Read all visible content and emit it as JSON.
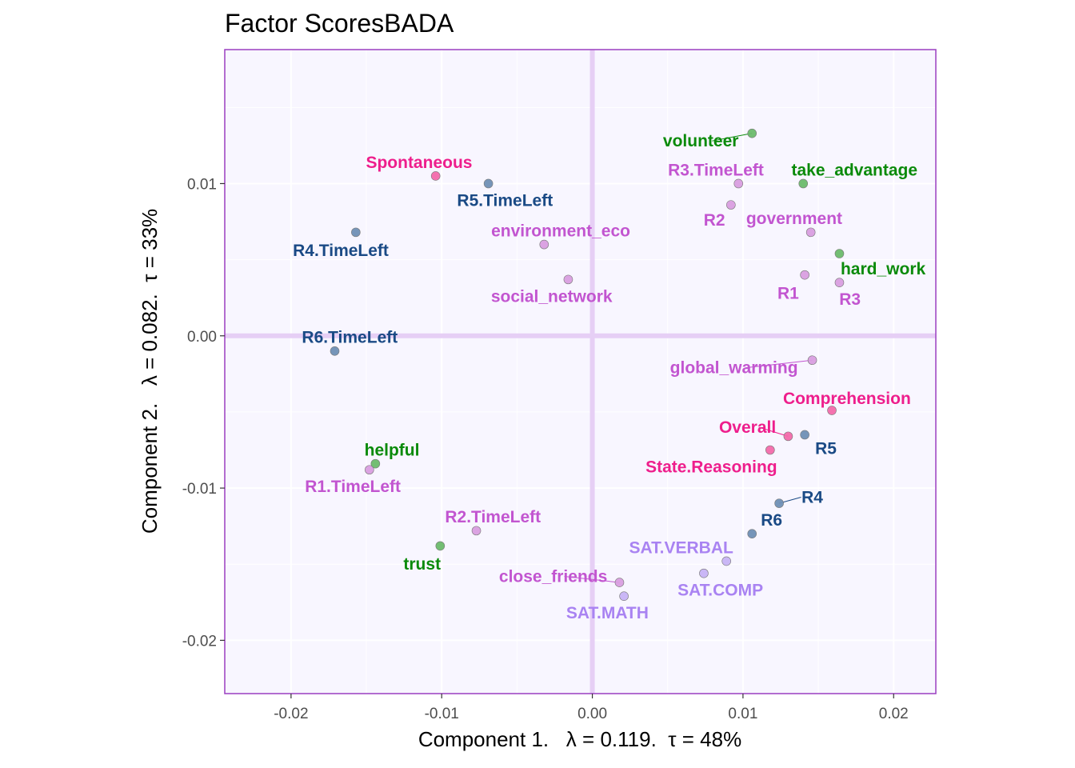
{
  "chart_data": {
    "type": "scatter",
    "title": "Factor ScoresBADA",
    "xlabel": "Component 1.   λ = 0.119.  τ = 48%",
    "ylabel": "Component 2.   λ = 0.082.  τ = 33%",
    "xlim": [
      -0.0244,
      0.0228
    ],
    "ylim": [
      -0.0235,
      0.0188
    ],
    "x_ticks": [
      -0.02,
      -0.01,
      0.0,
      0.01,
      0.02
    ],
    "x_tick_labels": [
      "-0.02",
      "-0.01",
      "0.00",
      "0.01",
      "0.02"
    ],
    "y_ticks": [
      -0.02,
      -0.01,
      0.0,
      0.01
    ],
    "y_tick_labels": [
      "-0.02",
      "-0.01",
      "0.00",
      "0.01"
    ],
    "grid": true,
    "colors": {
      "panel_background": "#f8f6ff",
      "panel_border": "#9a3fc0",
      "origin_lines": "#e6cff5",
      "green": "#0a8a0a",
      "pink": "#ee1e8c",
      "blue": "#1a4a85",
      "orchid": "#c255d0",
      "lavender": "#a983f2"
    },
    "points": [
      {
        "label": "volunteer",
        "x": 0.0106,
        "y": 0.0133,
        "point_color": "#6cba6c",
        "label_color": "#0a8a0a",
        "label_dx": -0.0034,
        "label_dy": -0.0005
      },
      {
        "label": "take_advantage",
        "x": 0.014,
        "y": 0.01,
        "point_color": "#6cba6c",
        "label_color": "#0a8a0a",
        "label_dx": 0.0034,
        "label_dy": 0.0009
      },
      {
        "label": "hard_work",
        "x": 0.0164,
        "y": 0.0054,
        "point_color": "#6cba6c",
        "label_color": "#0a8a0a",
        "label_dx": 0.0029,
        "label_dy": -0.001
      },
      {
        "label": "helpful",
        "x": -0.0144,
        "y": -0.0084,
        "point_color": "#6cba6c",
        "label_color": "#0a8a0a",
        "label_dx": 0.0011,
        "label_dy": 0.0009
      },
      {
        "label": "trust",
        "x": -0.0101,
        "y": -0.0138,
        "point_color": "#6cba6c",
        "label_color": "#0a8a0a",
        "label_dx": -0.0012,
        "label_dy": -0.0012
      },
      {
        "label": "Spontaneous",
        "x": -0.0104,
        "y": 0.0105,
        "point_color": "#f36aab",
        "label_color": "#ee1e8c",
        "label_dx": -0.0011,
        "label_dy": 0.0009
      },
      {
        "label": "Comprehension",
        "x": 0.0159,
        "y": -0.0049,
        "point_color": "#f36aab",
        "label_color": "#ee1e8c",
        "label_dx": 0.001,
        "label_dy": 0.0008
      },
      {
        "label": "Overall",
        "x": 0.013,
        "y": -0.0066,
        "point_color": "#f36aab",
        "label_color": "#ee1e8c",
        "label_dx": -0.0027,
        "label_dy": 0.0006
      },
      {
        "label": "State.Reasoning",
        "x": 0.0118,
        "y": -0.0075,
        "point_color": "#f36aab",
        "label_color": "#ee1e8c",
        "label_dx": -0.0039,
        "label_dy": -0.0011
      },
      {
        "label": "R5.TimeLeft",
        "x": -0.0069,
        "y": 0.01,
        "point_color": "#6f8fb5",
        "label_color": "#1a4a85",
        "label_dx": 0.0011,
        "label_dy": -0.0011
      },
      {
        "label": "R4.TimeLeft",
        "x": -0.0157,
        "y": 0.0068,
        "point_color": "#6f8fb5",
        "label_color": "#1a4a85",
        "label_dx": -0.001,
        "label_dy": -0.0012
      },
      {
        "label": "R6.TimeLeft",
        "x": -0.0171,
        "y": -0.001,
        "point_color": "#6f8fb5",
        "label_color": "#1a4a85",
        "label_dx": 0.001,
        "label_dy": 0.0009
      },
      {
        "label": "R5",
        "x": 0.0141,
        "y": -0.0065,
        "point_color": "#6f8fb5",
        "label_color": "#1a4a85",
        "label_dx": 0.0014,
        "label_dy": -0.0009
      },
      {
        "label": "R4",
        "x": 0.0124,
        "y": -0.011,
        "point_color": "#6f8fb5",
        "label_color": "#1a4a85",
        "label_dx": 0.0022,
        "label_dy": 0.0004
      },
      {
        "label": "R6",
        "x": 0.0106,
        "y": -0.013,
        "point_color": "#6f8fb5",
        "label_color": "#1a4a85",
        "label_dx": 0.0013,
        "label_dy": 0.0009
      },
      {
        "label": "R3.TimeLeft",
        "x": 0.0097,
        "y": 0.01,
        "point_color": "#d99ee0",
        "label_color": "#c255d0",
        "label_dx": -0.0015,
        "label_dy": 0.0009
      },
      {
        "label": "R2",
        "x": 0.0092,
        "y": 0.0086,
        "point_color": "#d99ee0",
        "label_color": "#c255d0",
        "label_dx": -0.0011,
        "label_dy": -0.001
      },
      {
        "label": "government",
        "x": 0.0145,
        "y": 0.0068,
        "point_color": "#d99ee0",
        "label_color": "#c255d0",
        "label_dx": -0.0011,
        "label_dy": 0.0009
      },
      {
        "label": "environment_eco",
        "x": -0.0032,
        "y": 0.006,
        "point_color": "#d99ee0",
        "label_color": "#c255d0",
        "label_dx": 0.0011,
        "label_dy": 0.0009
      },
      {
        "label": "social_network",
        "x": -0.0016,
        "y": 0.0037,
        "point_color": "#d99ee0",
        "label_color": "#c255d0",
        "label_dx": -0.0011,
        "label_dy": -0.0011
      },
      {
        "label": "R1",
        "x": 0.0141,
        "y": 0.004,
        "point_color": "#d99ee0",
        "label_color": "#c255d0",
        "label_dx": -0.0011,
        "label_dy": -0.0012
      },
      {
        "label": "R3",
        "x": 0.0164,
        "y": 0.0035,
        "point_color": "#d99ee0",
        "label_color": "#c255d0",
        "label_dx": 0.0007,
        "label_dy": -0.0011
      },
      {
        "label": "global_warming",
        "x": 0.0146,
        "y": -0.0016,
        "point_color": "#d99ee0",
        "label_color": "#c255d0",
        "label_dx": -0.0052,
        "label_dy": -0.0005
      },
      {
        "label": "R1.TimeLeft",
        "x": -0.0148,
        "y": -0.0088,
        "point_color": "#d99ee0",
        "label_color": "#c255d0",
        "label_dx": -0.0011,
        "label_dy": -0.0011
      },
      {
        "label": "R2.TimeLeft",
        "x": -0.0077,
        "y": -0.0128,
        "point_color": "#d99ee0",
        "label_color": "#c255d0",
        "label_dx": 0.0011,
        "label_dy": 0.0009
      },
      {
        "label": "close_friends",
        "x": 0.0018,
        "y": -0.0162,
        "point_color": "#d99ee0",
        "label_color": "#c255d0",
        "label_dx": -0.0044,
        "label_dy": 0.0004
      },
      {
        "label": "SAT.VERBAL",
        "x": 0.0089,
        "y": -0.0148,
        "point_color": "#c7b3f5",
        "label_color": "#a983f2",
        "label_dx": -0.003,
        "label_dy": 0.0009
      },
      {
        "label": "SAT.COMP",
        "x": 0.0074,
        "y": -0.0156,
        "point_color": "#c7b3f5",
        "label_color": "#a983f2",
        "label_dx": 0.0011,
        "label_dy": -0.0011
      },
      {
        "label": "SAT.MATH",
        "x": 0.0021,
        "y": -0.0171,
        "point_color": "#c7b3f5",
        "label_color": "#a983f2",
        "label_dx": -0.0011,
        "label_dy": -0.0011
      }
    ]
  }
}
